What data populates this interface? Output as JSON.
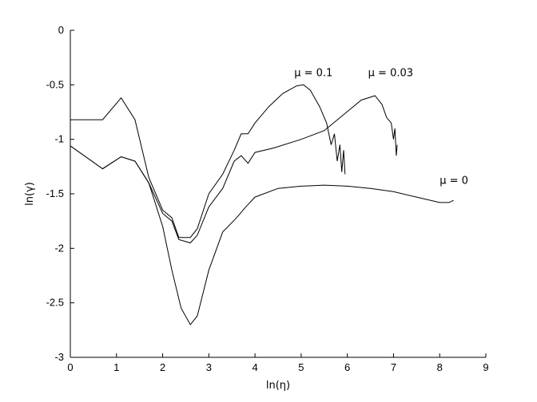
{
  "chart_data": {
    "type": "line",
    "title": "",
    "xlabel": "ln(η)",
    "ylabel": "ln(γ)",
    "xlim": [
      0,
      9
    ],
    "ylim": [
      -3,
      0
    ],
    "xticks": [
      "0",
      "1",
      "2",
      "3",
      "4",
      "5",
      "6",
      "7",
      "8",
      "9"
    ],
    "yticks": [
      "0",
      "-0.5",
      "-1",
      "-1.5",
      "-2",
      "-2.5",
      "-3"
    ],
    "grid": false,
    "legend": "none",
    "series": [
      {
        "name": "μ = 0.1",
        "line_color": "#000000",
        "x": [
          0,
          0.7,
          1.1,
          1.4,
          1.7,
          2.0,
          2.2,
          2.35,
          2.6,
          2.75,
          3.0,
          3.3,
          3.55,
          3.7,
          3.85,
          4.0,
          4.3,
          4.6,
          4.9,
          5.05,
          5.2,
          5.4,
          5.55,
          5.65,
          5.72,
          5.78,
          5.84,
          5.88,
          5.92,
          5.95
        ],
        "y": [
          -0.82,
          -0.82,
          -0.62,
          -0.82,
          -1.35,
          -1.65,
          -1.72,
          -1.9,
          -1.9,
          -1.82,
          -1.5,
          -1.32,
          -1.1,
          -0.95,
          -0.95,
          -0.85,
          -0.7,
          -0.58,
          -0.51,
          -0.5,
          -0.55,
          -0.7,
          -0.85,
          -1.05,
          -0.95,
          -1.2,
          -1.05,
          -1.3,
          -1.1,
          -1.32
        ],
        "label": "μ = 0.1"
      },
      {
        "name": "μ = 0.03",
        "line_color": "#000000",
        "x": [
          0,
          0.7,
          1.1,
          1.4,
          1.7,
          2.0,
          2.2,
          2.35,
          2.6,
          2.75,
          3.0,
          3.3,
          3.55,
          3.7,
          3.85,
          4.0,
          4.4,
          5.0,
          5.5,
          5.9,
          6.3,
          6.6,
          6.75,
          6.85,
          6.95,
          7.0,
          7.03,
          7.06,
          7.08
        ],
        "y": [
          -1.06,
          -1.27,
          -1.16,
          -1.2,
          -1.4,
          -1.68,
          -1.75,
          -1.92,
          -1.95,
          -1.88,
          -1.62,
          -1.45,
          -1.2,
          -1.15,
          -1.22,
          -1.12,
          -1.08,
          -1.0,
          -0.92,
          -0.78,
          -0.64,
          -0.6,
          -0.68,
          -0.8,
          -0.85,
          -1.0,
          -0.9,
          -1.15,
          -1.05
        ]
      },
      {
        "name": "μ = 0",
        "line_color": "#000000",
        "x": [
          0,
          0.7,
          1.1,
          1.4,
          1.7,
          2.0,
          2.2,
          2.4,
          2.6,
          2.75,
          3.0,
          3.3,
          3.6,
          3.8,
          4.0,
          4.5,
          5.0,
          5.5,
          6.0,
          6.5,
          7.0,
          7.5,
          8.0,
          8.2,
          8.3
        ],
        "y": [
          -1.06,
          -1.27,
          -1.16,
          -1.2,
          -1.4,
          -1.8,
          -2.2,
          -2.55,
          -2.7,
          -2.62,
          -2.2,
          -1.85,
          -1.72,
          -1.62,
          -1.53,
          -1.45,
          -1.43,
          -1.42,
          -1.43,
          -1.45,
          -1.48,
          -1.53,
          -1.58,
          -1.58,
          -1.56
        ]
      }
    ],
    "annotations": [
      {
        "text": "μ = 0.1",
        "x": 4.85,
        "y": -0.42
      },
      {
        "text": "μ = 0.03",
        "x": 6.45,
        "y": -0.42
      },
      {
        "text": "μ = 0",
        "x": 8.0,
        "y": -1.41
      }
    ]
  }
}
